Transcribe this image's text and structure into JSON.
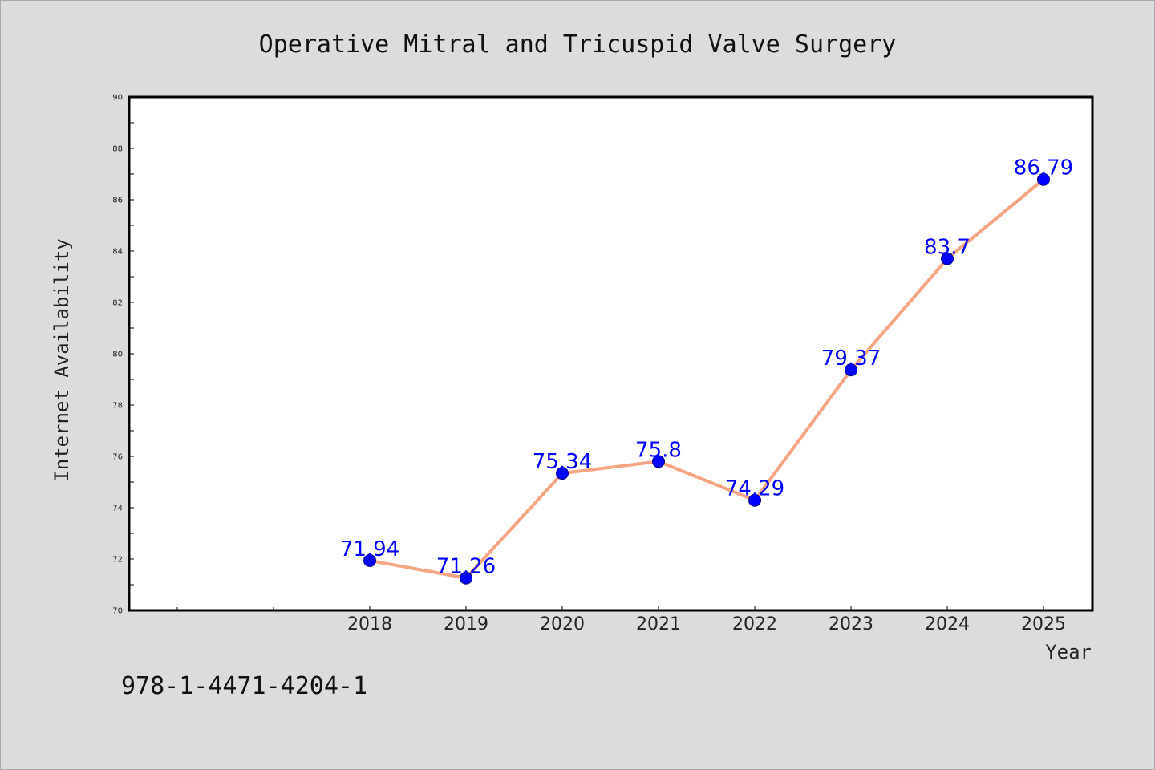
{
  "isbn": "978-1-4471-4204-1",
  "colors": {
    "background": "#dcdcdc",
    "plot_background": "#ffffff",
    "line": "#f4a582",
    "marker": "#0000ff",
    "data_label": "#0000ff"
  },
  "chart_data": {
    "type": "line",
    "title": "Operative Mitral and Tricuspid Valve Surgery",
    "xlabel": "Year",
    "ylabel": "Internet Availability",
    "x": [
      "2018",
      "2019",
      "2020",
      "2021",
      "2022",
      "2023",
      "2024",
      "2025"
    ],
    "values": [
      71.94,
      71.26,
      75.34,
      75.8,
      74.29,
      79.37,
      83.7,
      86.79
    ],
    "data_labels": [
      "71.94",
      "71.26",
      "75.34",
      "75.8",
      "74.29",
      "79.37",
      "83.7",
      "86.79"
    ],
    "ylim": [
      70,
      90
    ],
    "yticks": [
      "70",
      "72",
      "74",
      "76",
      "78",
      "80",
      "82",
      "84",
      "86",
      "88",
      "90"
    ],
    "grid": false,
    "legend": "none"
  }
}
